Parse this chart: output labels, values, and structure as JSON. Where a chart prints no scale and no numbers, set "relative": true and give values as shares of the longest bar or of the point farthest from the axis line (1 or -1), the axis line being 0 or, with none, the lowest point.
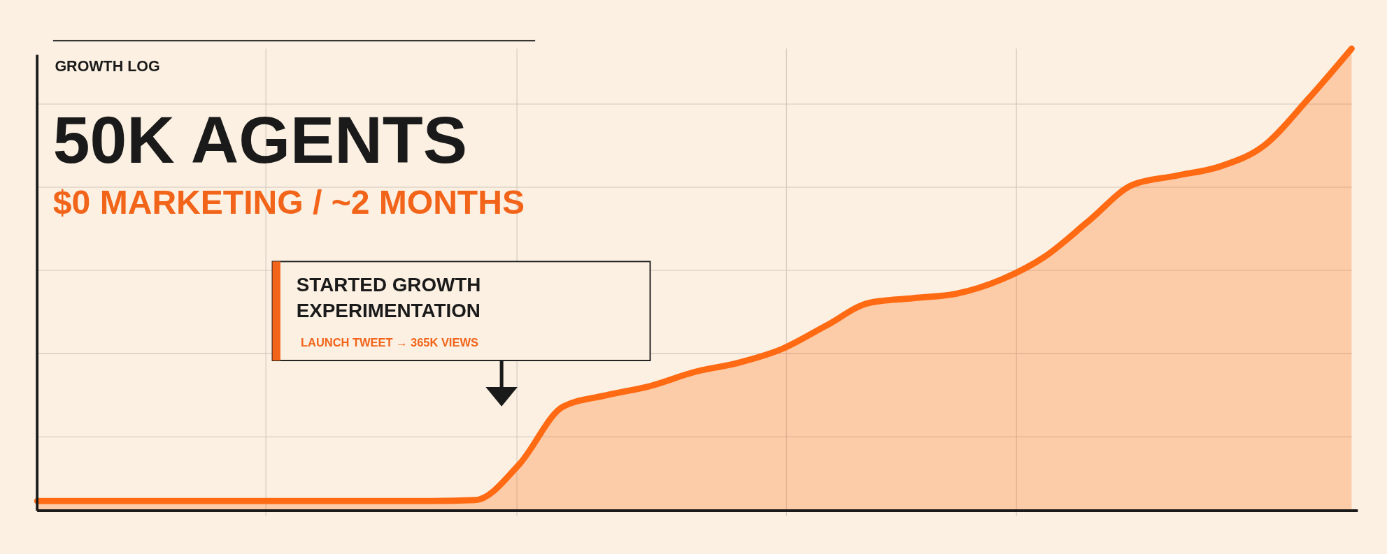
{
  "chart_data": {
    "type": "area",
    "title": "50K AGENTS",
    "subtitle": "$0 MARKETING / ~2 MONTHS",
    "annotations": [
      "GROWTH LOG",
      "STARTED GROWTH EXPERIMENTATION",
      "LAUNCH TWEET → 365K VIEWS"
    ],
    "relative": true,
    "grid": true,
    "categories": [
      null,
      null,
      null,
      null,
      null,
      null,
      null,
      null,
      null,
      null,
      null,
      null,
      null,
      null,
      null,
      null,
      null,
      null,
      null,
      null,
      null,
      null,
      null,
      null,
      null,
      null,
      null,
      null,
      null,
      null,
      null
    ],
    "series": [
      {
        "color": "#ff6a13",
        "values": [
          0.021,
          0.021,
          0.021,
          0.021,
          0.021,
          0.021,
          0.021,
          0.021,
          0.021,
          0.021,
          0.023,
          0.1,
          0.225,
          0.25,
          0.27,
          0.3,
          0.32,
          0.35,
          0.4,
          0.45,
          0.46,
          0.47,
          0.5,
          0.55,
          0.627,
          0.705,
          0.725,
          0.745,
          0.79,
          0.89,
          1.0
        ]
      }
    ]
  }
}
